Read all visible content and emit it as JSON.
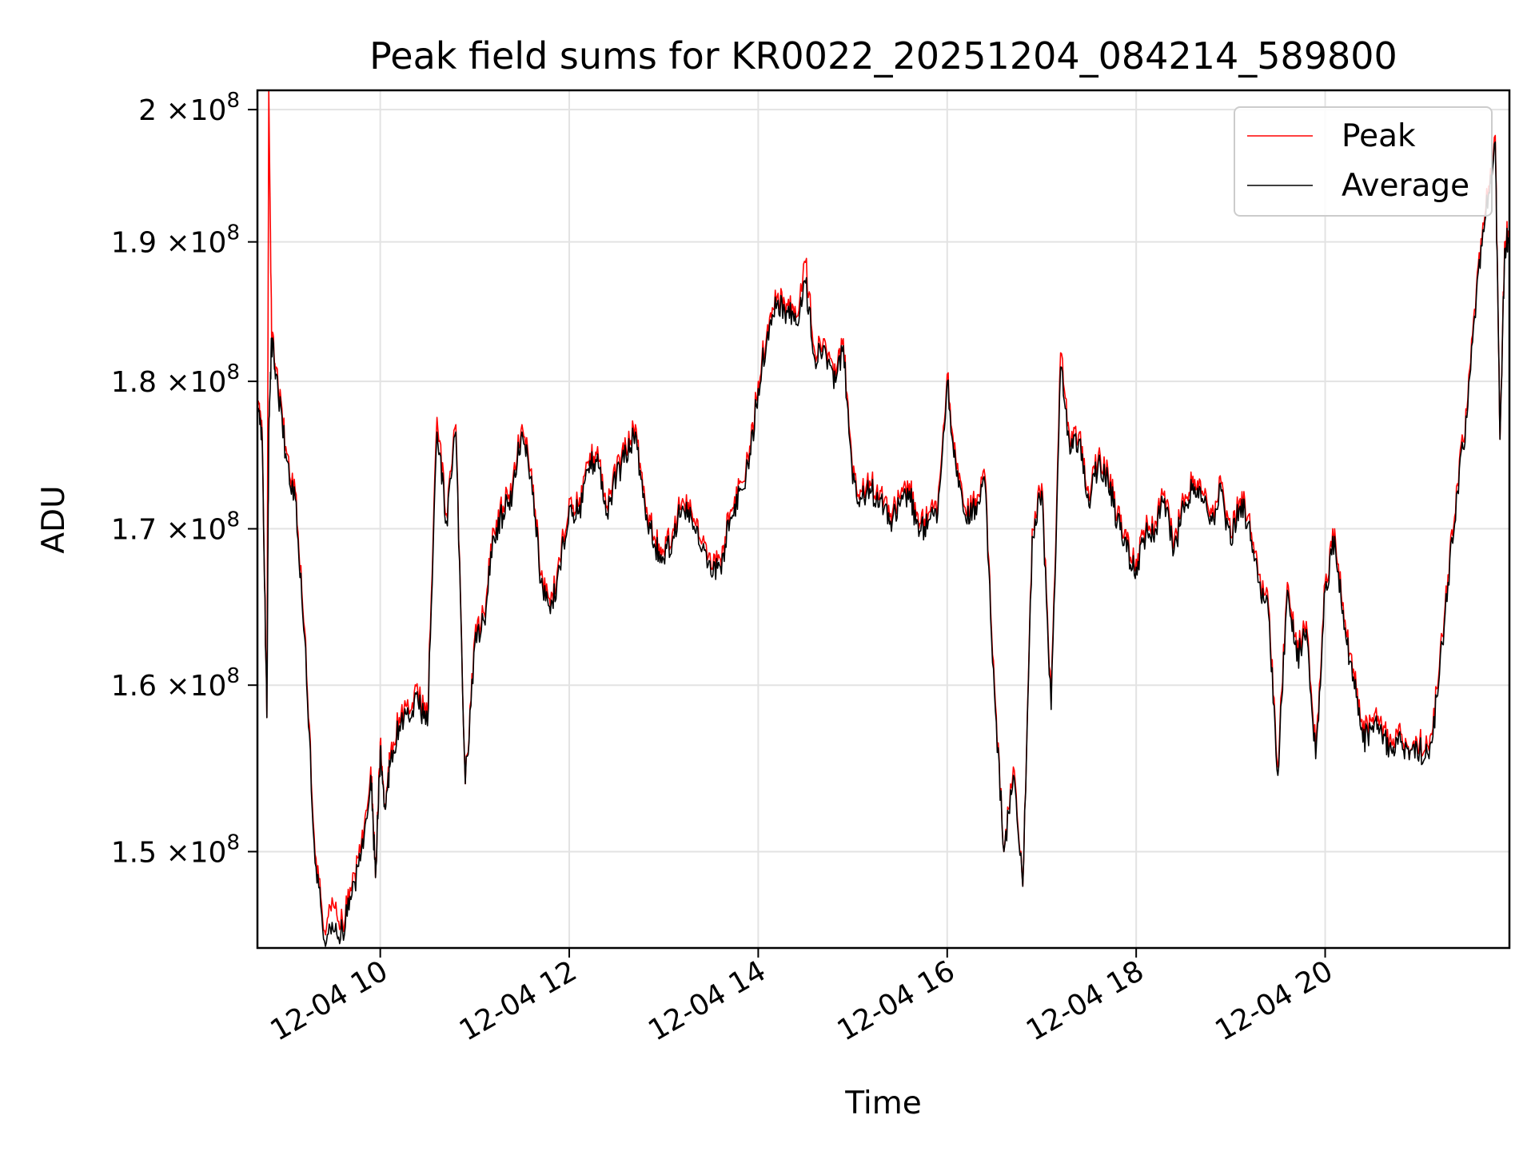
{
  "chart_data": {
    "type": "line",
    "title": "Peak field sums for KR0022_20251204_084214_589800",
    "xlabel": "Time",
    "ylabel": "ADU",
    "xlim_hours": [
      8.7,
      21.95
    ],
    "ylim": [
      144500000,
      201500000
    ],
    "y_scale": "log",
    "grid": true,
    "legend_position": "top-right",
    "x_tick_values": [
      10,
      12,
      14,
      16,
      18,
      20
    ],
    "x_tick_labels": [
      "12-04 10",
      "12-04 12",
      "12-04 14",
      "12-04 16",
      "12-04 18",
      "12-04 20"
    ],
    "y_tick_values": [
      150000000,
      160000000,
      170000000,
      180000000,
      190000000,
      200000000
    ],
    "y_tick_labels": [
      {
        "mantissa": "1.5",
        "exponent": "8"
      },
      {
        "mantissa": "1.6",
        "exponent": "8"
      },
      {
        "mantissa": "1.7",
        "exponent": "8"
      },
      {
        "mantissa": "1.8",
        "exponent": "8"
      },
      {
        "mantissa": "1.9",
        "exponent": "8"
      },
      {
        "mantissa": "2",
        "exponent": "8"
      }
    ],
    "y_tick_times": "×10",
    "series": [
      {
        "name": "Peak",
        "color": "#ff0000",
        "x": [
          8.7,
          8.75,
          8.8,
          8.82,
          8.85,
          8.9,
          9.0,
          9.1,
          9.2,
          9.3,
          9.4,
          9.5,
          9.6,
          9.7,
          9.8,
          9.9,
          9.95,
          10.0,
          10.05,
          10.1,
          10.2,
          10.3,
          10.4,
          10.5,
          10.6,
          10.7,
          10.8,
          10.9,
          11.0,
          11.1,
          11.2,
          11.3,
          11.4,
          11.5,
          11.6,
          11.7,
          11.8,
          11.9,
          12.0,
          12.1,
          12.2,
          12.3,
          12.4,
          12.5,
          12.6,
          12.7,
          12.8,
          12.9,
          13.0,
          13.1,
          13.2,
          13.3,
          13.4,
          13.5,
          13.6,
          13.7,
          13.8,
          13.9,
          14.0,
          14.1,
          14.2,
          14.3,
          14.4,
          14.5,
          14.6,
          14.7,
          14.8,
          14.9,
          15.0,
          15.1,
          15.2,
          15.3,
          15.4,
          15.5,
          15.6,
          15.7,
          15.8,
          15.9,
          16.0,
          16.1,
          16.2,
          16.3,
          16.4,
          16.5,
          16.6,
          16.7,
          16.8,
          16.9,
          17.0,
          17.1,
          17.2,
          17.3,
          17.4,
          17.5,
          17.6,
          17.7,
          17.8,
          17.9,
          18.0,
          18.1,
          18.2,
          18.3,
          18.4,
          18.5,
          18.6,
          18.7,
          18.8,
          18.9,
          19.0,
          19.1,
          19.2,
          19.3,
          19.4,
          19.5,
          19.6,
          19.7,
          19.8,
          19.9,
          20.0,
          20.1,
          20.2,
          20.3,
          20.4,
          20.5,
          20.6,
          20.7,
          20.8,
          20.9,
          21.0,
          21.1,
          21.2,
          21.3,
          21.4,
          21.5,
          21.6,
          21.7,
          21.8,
          21.85,
          21.9,
          21.95
        ],
        "values": [
          178500000,
          176500000,
          158000000,
          201500000,
          183200000,
          181000000,
          175500000,
          172500000,
          163500000,
          151000000,
          145500000,
          147000000,
          146000000,
          148000000,
          150500000,
          155000000,
          148500000,
          156500000,
          152500000,
          155500000,
          158000000,
          158500000,
          159500000,
          158000000,
          177500000,
          171000000,
          177000000,
          154000000,
          163000000,
          164500000,
          170000000,
          171500000,
          173000000,
          177000000,
          174000000,
          167000000,
          165000000,
          168000000,
          172000000,
          171500000,
          174500000,
          175500000,
          171500000,
          174000000,
          175500000,
          177000000,
          172000000,
          169500000,
          168500000,
          170000000,
          172000000,
          171000000,
          169000000,
          167500000,
          168000000,
          171000000,
          173000000,
          174500000,
          180000000,
          184000000,
          186000000,
          185500000,
          184500000,
          188500000,
          182000000,
          183000000,
          180000000,
          183000000,
          173500000,
          172500000,
          173000000,
          172500000,
          171000000,
          172000000,
          173000000,
          170000000,
          171000000,
          171500000,
          180500000,
          174000000,
          171000000,
          172000000,
          173500000,
          160000000,
          150000000,
          155000000,
          148000000,
          170000000,
          173000000,
          159000000,
          182000000,
          175500000,
          176500000,
          172000000,
          175000000,
          174000000,
          171000000,
          169000000,
          168000000,
          170000000,
          170500000,
          172500000,
          169000000,
          172000000,
          173500000,
          172500000,
          171000000,
          173000000,
          169500000,
          172000000,
          171000000,
          167000000,
          165000000,
          155000000,
          166500000,
          162000000,
          164000000,
          156000000,
          166500000,
          170000000,
          164000000,
          161000000,
          157000000,
          158000000,
          157500000,
          156500000,
          157000000,
          156000000,
          156500000,
          156000000,
          160500000,
          167000000,
          173000000,
          178000000,
          186500000,
          192500000,
          198000000,
          176000000,
          190000000,
          191000000
        ]
      },
      {
        "name": "Average",
        "color": "#000000",
        "x": [
          8.7,
          8.75,
          8.8,
          8.82,
          8.85,
          8.9,
          9.0,
          9.1,
          9.2,
          9.3,
          9.4,
          9.5,
          9.6,
          9.7,
          9.8,
          9.9,
          9.95,
          10.0,
          10.05,
          10.1,
          10.2,
          10.3,
          10.4,
          10.5,
          10.6,
          10.7,
          10.8,
          10.9,
          11.0,
          11.1,
          11.2,
          11.3,
          11.4,
          11.5,
          11.6,
          11.7,
          11.8,
          11.9,
          12.0,
          12.1,
          12.2,
          12.3,
          12.4,
          12.5,
          12.6,
          12.7,
          12.8,
          12.9,
          13.0,
          13.1,
          13.2,
          13.3,
          13.4,
          13.5,
          13.6,
          13.7,
          13.8,
          13.9,
          14.0,
          14.1,
          14.2,
          14.3,
          14.4,
          14.5,
          14.6,
          14.7,
          14.8,
          14.9,
          15.0,
          15.1,
          15.2,
          15.3,
          15.4,
          15.5,
          15.6,
          15.7,
          15.8,
          15.9,
          16.0,
          16.1,
          16.2,
          16.3,
          16.4,
          16.5,
          16.6,
          16.7,
          16.8,
          16.9,
          17.0,
          17.1,
          17.2,
          17.3,
          17.4,
          17.5,
          17.6,
          17.7,
          17.8,
          17.9,
          18.0,
          18.1,
          18.2,
          18.3,
          18.4,
          18.5,
          18.6,
          18.7,
          18.8,
          18.9,
          19.0,
          19.1,
          19.2,
          19.3,
          19.4,
          19.5,
          19.6,
          19.7,
          19.8,
          19.9,
          20.0,
          20.1,
          20.2,
          20.3,
          20.4,
          20.5,
          20.6,
          20.7,
          20.8,
          20.9,
          21.0,
          21.1,
          21.2,
          21.3,
          21.4,
          21.5,
          21.6,
          21.7,
          21.8,
          21.85,
          21.9,
          21.95
        ],
        "values": [
          178000000,
          176000000,
          158000000,
          176500000,
          182800000,
          180500000,
          175000000,
          172000000,
          163000000,
          150500000,
          145000000,
          145500000,
          145500000,
          147500000,
          150000000,
          154500000,
          148500000,
          156000000,
          152500000,
          155000000,
          157500000,
          158000000,
          159000000,
          157500000,
          176500000,
          170500000,
          176500000,
          154000000,
          162500000,
          164000000,
          169500000,
          171000000,
          172500000,
          176500000,
          173500000,
          166500000,
          164500000,
          167500000,
          171500000,
          171000000,
          174000000,
          175000000,
          171000000,
          173500000,
          175000000,
          176500000,
          171500000,
          169000000,
          168000000,
          169500000,
          171500000,
          170500000,
          168500000,
          167000000,
          167500000,
          170500000,
          172500000,
          174000000,
          179500000,
          183500000,
          185500000,
          185000000,
          184000000,
          187000000,
          181500000,
          182500000,
          179500000,
          182500000,
          173000000,
          172000000,
          172500000,
          172000000,
          170500000,
          171500000,
          172500000,
          169500000,
          170500000,
          171000000,
          180000000,
          173500000,
          170500000,
          171500000,
          173000000,
          159500000,
          150000000,
          154500000,
          148000000,
          169500000,
          172500000,
          158500000,
          181000000,
          175000000,
          176000000,
          171500000,
          174500000,
          173500000,
          170500000,
          168500000,
          167500000,
          169500000,
          170000000,
          172000000,
          168500000,
          171500000,
          173000000,
          172000000,
          170500000,
          172500000,
          169000000,
          171500000,
          170500000,
          166500000,
          164500000,
          154500000,
          166000000,
          161500000,
          163500000,
          155500000,
          166000000,
          169500000,
          163500000,
          160500000,
          156500000,
          157500000,
          157000000,
          156000000,
          156500000,
          156000000,
          156000000,
          155500000,
          160000000,
          166500000,
          172500000,
          177500000,
          186000000,
          192000000,
          197500000,
          176000000,
          189500000,
          190500000
        ]
      }
    ]
  }
}
